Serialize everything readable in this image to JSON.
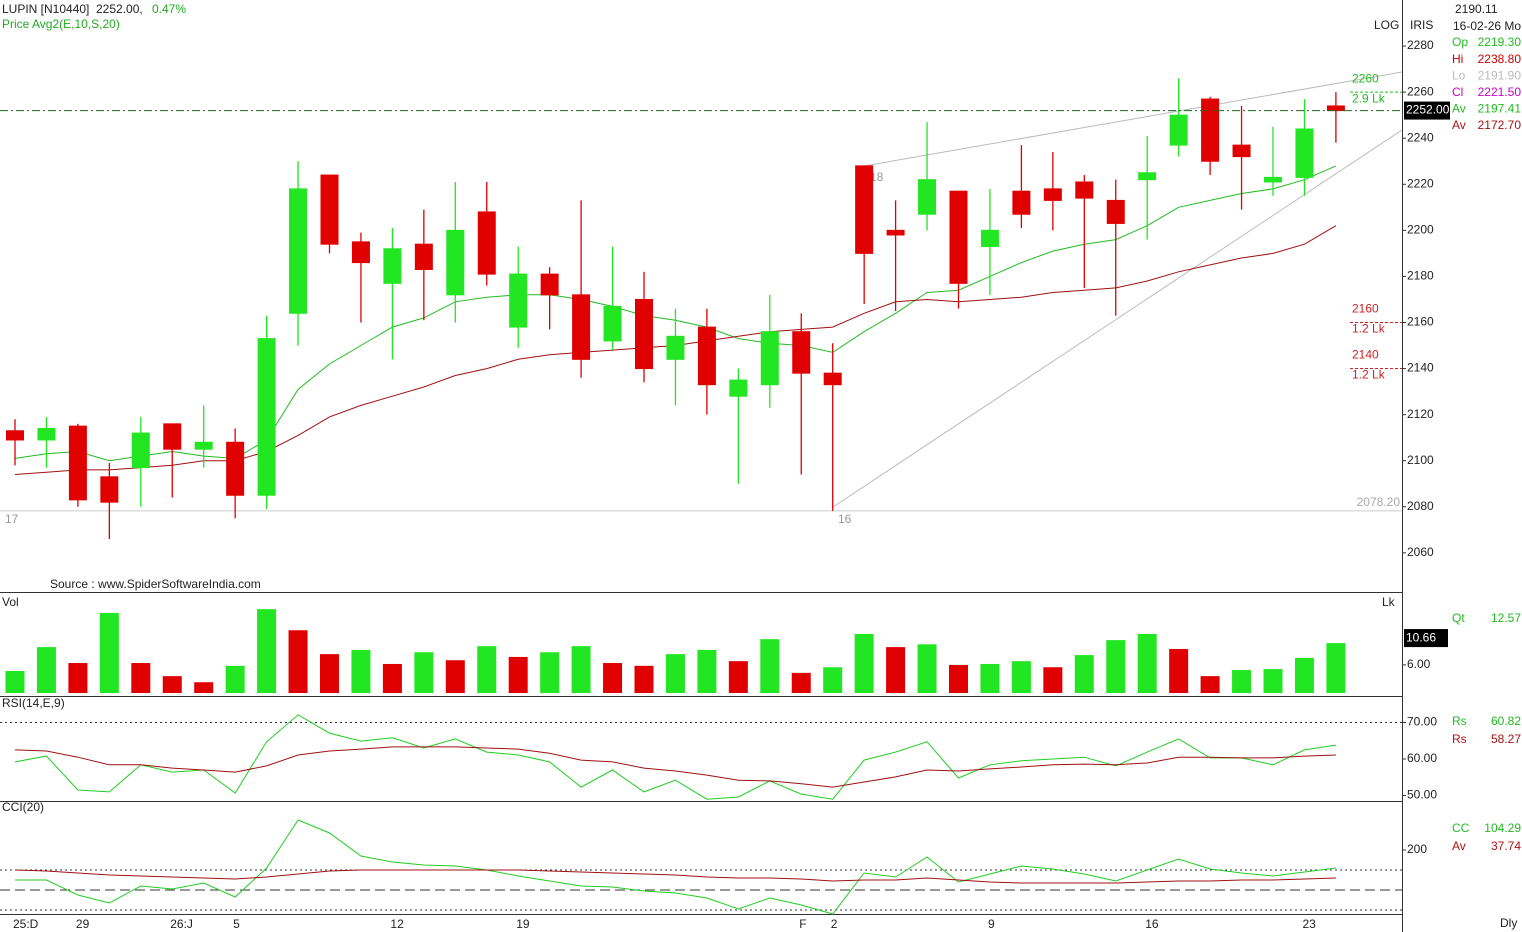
{
  "header": {
    "symbol": "LUPIN [N10440]",
    "price": "2252.00,",
    "change": "0.47%",
    "studies": "Price  Avg2(E,10,S,20)"
  },
  "source": "Source : www.SpiderSoftwareIndia.com",
  "info": {
    "scale": "LOG",
    "style": "IRIS",
    "cursor_value": "2190.11",
    "date": "16-02-26 Mo",
    "period": "Dly",
    "rows": [
      {
        "label": "Op",
        "value": "2219.30",
        "color": "#22bb22"
      },
      {
        "label": "Hi",
        "value": "2238.80",
        "color": "#cc0000"
      },
      {
        "label": "Lo",
        "value": "2191.90",
        "color": "#bbbbbb"
      },
      {
        "label": "Cl",
        "value": "2221.50",
        "color": "#cc00cc"
      },
      {
        "label": "Av",
        "value": "2197.41",
        "color": "#22bb22"
      },
      {
        "label": "Av",
        "value": "2172.70",
        "color": "#aa1111"
      }
    ]
  },
  "chart_data": [
    {
      "type": "candlestick",
      "categories": [
        "25:D",
        null,
        "29",
        null,
        null,
        "26:J",
        null,
        "5",
        null,
        null,
        null,
        null,
        "12",
        null,
        null,
        null,
        "19",
        null,
        null,
        null,
        null,
        null,
        null,
        null,
        null,
        "F",
        "2",
        null,
        null,
        null,
        null,
        "9",
        null,
        null,
        null,
        null,
        "16",
        null,
        null,
        null,
        null,
        "23",
        null
      ],
      "open": [
        2113,
        2109,
        2115,
        2093,
        2097,
        2116,
        2105,
        2108,
        2085,
        2164,
        2224,
        2195,
        2177,
        2194,
        2172,
        2208,
        2158,
        2181,
        2172,
        2152,
        2170,
        2144,
        2158,
        2128,
        2133,
        2156,
        2138,
        2228,
        2200,
        2207,
        2217,
        2193,
        2217,
        2218,
        2221,
        2213,
        2222,
        2237,
        2257,
        2237,
        2221,
        2223,
        2254
      ],
      "high": [
        2118,
        2119,
        2116,
        2099,
        2119,
        2116,
        2124,
        2114,
        2163,
        2230,
        2224,
        2199,
        2201,
        2209,
        2221,
        2221,
        2193,
        2184,
        2213,
        2193,
        2182,
        2166,
        2166,
        2140,
        2172,
        2164,
        2151,
        2228,
        2213,
        2247,
        2217,
        2218,
        2237,
        2234,
        2224,
        2222,
        2241,
        2266,
        2258,
        2254,
        2245,
        2257,
        2260
      ],
      "low": [
        2098,
        2097,
        2080,
        2066,
        2080,
        2084,
        2097,
        2075,
        2079,
        2150,
        2190,
        2160,
        2144,
        2161,
        2160,
        2176,
        2149,
        2157,
        2136,
        2148,
        2134,
        2124,
        2120,
        2090,
        2123,
        2094,
        2078.2,
        2168,
        2165,
        2200,
        2166,
        2172,
        2201,
        2200,
        2175,
        2163,
        2196,
        2232,
        2224,
        2209,
        2215,
        2215,
        2238
      ],
      "close": [
        2109,
        2114,
        2083,
        2082,
        2112,
        2105,
        2108,
        2085,
        2153,
        2218,
        2194,
        2186,
        2192,
        2183,
        2200,
        2181,
        2181,
        2172,
        2144,
        2167,
        2140,
        2154,
        2133,
        2135,
        2156,
        2138,
        2133,
        2190,
        2198,
        2222,
        2177,
        2200,
        2207,
        2213,
        2214,
        2203,
        2225,
        2250,
        2230,
        2232,
        2223,
        2244,
        2252
      ],
      "up_color": "#22e622",
      "down_color": "#e00000",
      "overlays": [
        {
          "color": "#22bb22",
          "values": [
            2101,
            2103,
            2104,
            2100,
            2102,
            2104,
            2102,
            2101,
            2109,
            2131,
            2142,
            2150,
            2158,
            2162,
            2169,
            2171,
            2172,
            2172,
            2170,
            2167,
            2163,
            2161,
            2158,
            2153,
            2151,
            2150,
            2147,
            2156,
            2164,
            2173,
            2174,
            2180,
            2186,
            2191,
            2194,
            2196,
            2202,
            2210,
            2213,
            2216,
            2218,
            2222,
            2228
          ]
        },
        {
          "color": "#a01010",
          "values": [
            2094,
            2095,
            2096,
            2096,
            2097,
            2098,
            2100,
            2100,
            2104,
            2111,
            2119,
            2124,
            2128,
            2132,
            2137,
            2140,
            2144,
            2146,
            2147,
            2148,
            2149,
            2150,
            2152,
            2154,
            2156,
            2157,
            2158,
            2164,
            2169,
            2170,
            2169,
            2170,
            2171,
            2173,
            2174,
            2175,
            2178,
            2182,
            2185,
            2188,
            2190,
            2194,
            2202
          ]
        }
      ],
      "ylim": [
        2043,
        2300
      ],
      "yticks": [
        2060,
        2080,
        2100,
        2120,
        2140,
        2160,
        2180,
        2200,
        2220,
        2240,
        2260,
        2280
      ],
      "last": {
        "value": 2252,
        "label": "2252.00"
      },
      "low_marker": {
        "value": 2078.2,
        "label": "2078.20"
      },
      "levels": [
        {
          "price": 2260,
          "volume": "2.9 Lk",
          "color": "#22bb22"
        },
        {
          "price": 2160,
          "volume": "1.2 Lk",
          "color": "#cc2222"
        },
        {
          "price": 2140,
          "volume": "1.2 Lk",
          "color": "#cc2222"
        }
      ],
      "markers": [
        "17",
        "16",
        "18"
      ]
    },
    {
      "type": "bar",
      "title": "Vol",
      "unit": "Lk",
      "values": [
        4.7,
        9.8,
        6.4,
        17.1,
        6.4,
        3.6,
        2.3,
        5.8,
        17.9,
        13.4,
        8.3,
        9.2,
        6.2,
        8.7,
        7.0,
        10.0,
        7.7,
        8.7,
        10.0,
        6.4,
        5.8,
        8.3,
        9.2,
        6.8,
        11.5,
        4.3,
        5.5,
        12.6,
        9.8,
        10.4,
        6.0,
        6.2,
        6.8,
        5.5,
        8.1,
        11.3,
        12.6,
        9.4,
        3.6,
        4.9,
        5.1,
        7.5,
        10.66
      ],
      "colors": [
        "#22e622",
        "#22e622",
        "#e00000",
        "#22e622",
        "#e00000",
        "#e00000",
        "#e00000",
        "#22e622",
        "#22e622",
        "#e00000",
        "#e00000",
        "#22e622",
        "#e00000",
        "#22e622",
        "#e00000",
        "#22e622",
        "#e00000",
        "#22e622",
        "#22e622",
        "#e00000",
        "#e00000",
        "#22e622",
        "#22e622",
        "#e00000",
        "#22e622",
        "#e00000",
        "#22e622",
        "#22e622",
        "#e00000",
        "#22e622",
        "#e00000",
        "#22e622",
        "#22e622",
        "#e00000",
        "#22e622",
        "#22e622",
        "#22e622",
        "#e00000",
        "#e00000",
        "#22e622",
        "#22e622",
        "#22e622",
        "#22e622"
      ],
      "ylim": [
        0,
        20.5
      ],
      "yticks": [
        {
          "value": 6,
          "label": "6.00"
        }
      ],
      "last": {
        "value": 10.66,
        "label": "10.66"
      },
      "readouts": [
        {
          "label": "Qt",
          "value": "12.57",
          "color": "#22bb22"
        }
      ]
    },
    {
      "type": "line",
      "title": "RSI(14,E,9)",
      "series": [
        {
          "color": "#22cc22",
          "values": [
            59.2,
            60.8,
            51.5,
            51.0,
            58.4,
            56.4,
            57.0,
            50.7,
            64.7,
            72.1,
            67.1,
            64.9,
            65.8,
            63.0,
            65.5,
            61.9,
            61.1,
            59.2,
            52.3,
            57.0,
            51.0,
            54.2,
            49.0,
            49.6,
            54.0,
            50.4,
            49.0,
            59.7,
            61.9,
            64.7,
            54.8,
            58.4,
            59.5,
            60.0,
            60.5,
            58.1,
            61.9,
            65.5,
            60.3,
            60.3,
            58.4,
            62.5,
            63.8
          ]
        },
        {
          "color": "#a01010",
          "values": [
            62.5,
            62.2,
            60.5,
            58.4,
            58.4,
            57.5,
            57.0,
            56.4,
            58.1,
            61.1,
            62.2,
            62.7,
            63.3,
            63.3,
            63.3,
            63.0,
            62.7,
            61.6,
            59.7,
            59.2,
            57.5,
            56.7,
            55.6,
            54.2,
            54.0,
            53.2,
            52.3,
            53.7,
            55.1,
            57.0,
            56.7,
            57.3,
            57.8,
            58.4,
            58.6,
            58.4,
            58.9,
            60.5,
            60.5,
            60.3,
            60.3,
            60.8,
            61.1
          ]
        }
      ],
      "ylim": [
        48.5,
        76.7
      ],
      "yticks": [
        {
          "value": 70,
          "label": "70.00"
        },
        {
          "value": 60,
          "label": "60.00"
        },
        {
          "value": 50,
          "label": "50.00"
        }
      ],
      "ref_lines": [
        {
          "value": 70,
          "style": "dotted"
        }
      ],
      "readouts": [
        {
          "label": "Rs",
          "value": "60.82",
          "color": "#22bb22"
        },
        {
          "label": "Rs",
          "value": "58.27",
          "color": "#aa1111"
        }
      ]
    },
    {
      "type": "line",
      "title": "CCI(20)",
      "series": [
        {
          "color": "#22cc22",
          "values": [
            50,
            50,
            -25,
            -65,
            20,
            5,
            35,
            -35,
            110,
            350,
            285,
            170,
            140,
            125,
            120,
            100,
            70,
            45,
            20,
            15,
            -5,
            -15,
            -40,
            -95,
            -40,
            -75,
            -120,
            85,
            65,
            165,
            40,
            80,
            120,
            105,
            80,
            45,
            100,
            155,
            105,
            85,
            70,
            90,
            110
          ]
        },
        {
          "color": "#a01010",
          "values": [
            100,
            95,
            85,
            75,
            70,
            65,
            60,
            55,
            65,
            80,
            95,
            100,
            100,
            100,
            100,
            100,
            100,
            95,
            90,
            85,
            80,
            75,
            65,
            60,
            60,
            55,
            45,
            50,
            50,
            60,
            50,
            40,
            35,
            35,
            35,
            35,
            40,
            45,
            45,
            50,
            50,
            55,
            60
          ]
        }
      ],
      "ylim": [
        -125,
        440
      ],
      "yticks": [
        200
      ],
      "ref_lines": [
        {
          "value": 100,
          "style": "dotted"
        },
        {
          "value": 0,
          "style": "dashed"
        },
        {
          "value": -100,
          "style": "dotted"
        }
      ],
      "readouts": [
        {
          "label": "CC",
          "value": "104.29",
          "color": "#22bb22"
        },
        {
          "label": "Av",
          "value": "37.74",
          "color": "#aa1111"
        }
      ]
    }
  ]
}
